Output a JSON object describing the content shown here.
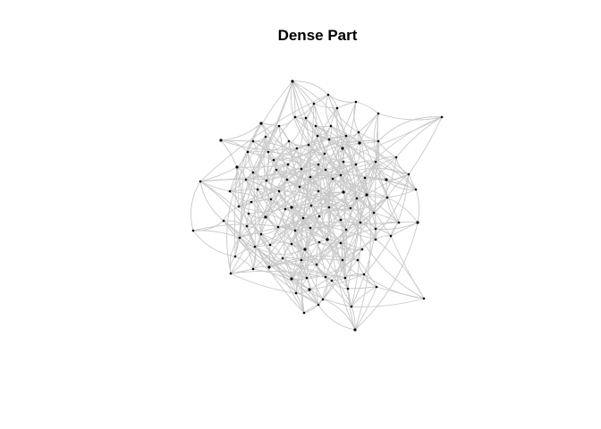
{
  "title": "Dense Part",
  "colors": {
    "background": "#ffffff",
    "edge": "#c8c8c8",
    "node": "#000000",
    "title": "#000000"
  }
}
